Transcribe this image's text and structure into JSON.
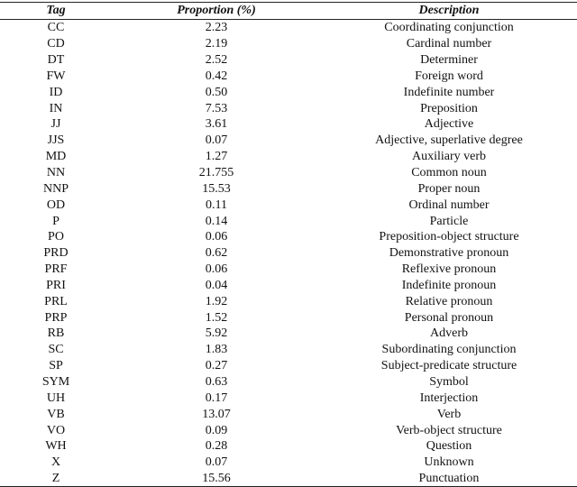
{
  "table": {
    "headers": [
      "Tag",
      "Proportion (%)",
      "Description"
    ],
    "rows": [
      [
        "CC",
        "2.23",
        "Coordinating conjunction"
      ],
      [
        "CD",
        "2.19",
        "Cardinal number"
      ],
      [
        "DT",
        "2.52",
        "Determiner"
      ],
      [
        "FW",
        "0.42",
        "Foreign word"
      ],
      [
        "ID",
        "0.50",
        "Indefinite number"
      ],
      [
        "IN",
        "7.53",
        "Preposition"
      ],
      [
        "JJ",
        "3.61",
        "Adjective"
      ],
      [
        "JJS",
        "0.07",
        "Adjective, superlative degree"
      ],
      [
        "MD",
        "1.27",
        "Auxiliary verb"
      ],
      [
        "NN",
        "21.755",
        "Common noun"
      ],
      [
        "NNP",
        "15.53",
        "Proper noun"
      ],
      [
        "OD",
        "0.11",
        "Ordinal number"
      ],
      [
        "P",
        "0.14",
        "Particle"
      ],
      [
        "PO",
        "0.06",
        "Preposition-object structure"
      ],
      [
        "PRD",
        "0.62",
        "Demonstrative pronoun"
      ],
      [
        "PRF",
        "0.06",
        "Reflexive pronoun"
      ],
      [
        "PRI",
        "0.04",
        "Indefinite pronoun"
      ],
      [
        "PRL",
        "1.92",
        "Relative pronoun"
      ],
      [
        "PRP",
        "1.52",
        "Personal pronoun"
      ],
      [
        "RB",
        "5.92",
        "Adverb"
      ],
      [
        "SC",
        "1.83",
        "Subordinating conjunction"
      ],
      [
        "SP",
        "0.27",
        "Subject-predicate structure"
      ],
      [
        "SYM",
        "0.63",
        "Symbol"
      ],
      [
        "UH",
        "0.17",
        "Interjection"
      ],
      [
        "VB",
        "13.07",
        "Verb"
      ],
      [
        "VO",
        "0.09",
        "Verb-object structure"
      ],
      [
        "WH",
        "0.28",
        "Question"
      ],
      [
        "X",
        "0.07",
        "Unknown"
      ],
      [
        "Z",
        "15.56",
        "Punctuation"
      ]
    ]
  }
}
